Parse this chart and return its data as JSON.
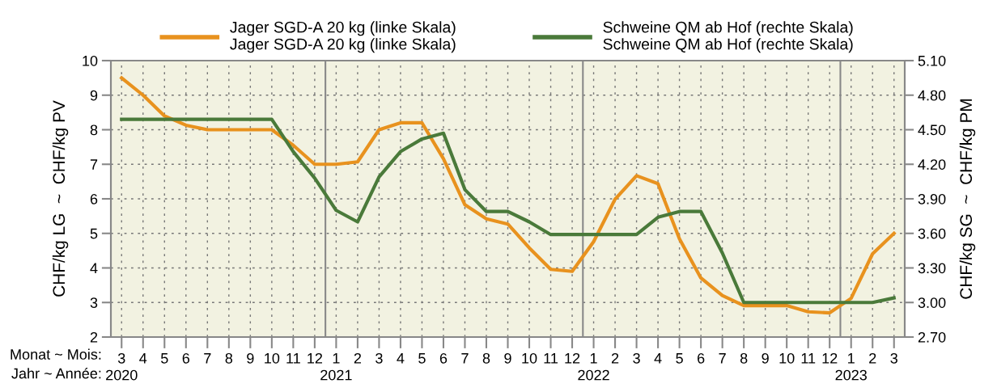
{
  "chart_data": {
    "type": "line",
    "categories": [
      "3\n2020",
      "4",
      "5",
      "6",
      "7",
      "8",
      "9",
      "10",
      "11",
      "12",
      "1\n2021",
      "2",
      "3",
      "4",
      "5",
      "6",
      "7",
      "8",
      "9",
      "10",
      "11",
      "12",
      "1\n2022",
      "2",
      "3",
      "4",
      "5",
      "6",
      "7",
      "8",
      "9",
      "10",
      "11",
      "12",
      "1\n2023",
      "2",
      "3"
    ],
    "series": [
      {
        "name": "Jager SGD-A 20 kg (linke Skala)\nJager SGD-A 20 kg (linke Skala)",
        "color": "#e8921e",
        "values": [
          9.5,
          9.0,
          8.4,
          8.13,
          8.0,
          8.0,
          8.0,
          8.0,
          7.55,
          7.0,
          7.0,
          7.07,
          8.0,
          8.2,
          8.2,
          7.16,
          5.83,
          5.42,
          5.27,
          4.58,
          3.96,
          3.9,
          4.76,
          5.99,
          6.67,
          6.44,
          4.84,
          3.71,
          3.2,
          2.91,
          2.91,
          2.91,
          2.73,
          2.7,
          3.12,
          4.41,
          5.0
        ]
      },
      {
        "name": "Schweine QM ab Hof (rechte Skala)\nSchweine QM ab Hof (rechte Skala)",
        "color": "#4a7a3a",
        "axis": "y2",
        "values": [
          4.59,
          4.59,
          4.59,
          4.59,
          4.59,
          4.59,
          4.59,
          4.59,
          4.31,
          4.08,
          3.8,
          3.7,
          4.09,
          4.31,
          4.42,
          4.47,
          3.98,
          3.79,
          3.79,
          3.7,
          3.59,
          3.59,
          3.59,
          3.59,
          3.59,
          3.74,
          3.79,
          3.79,
          3.43,
          3.0,
          3.0,
          3.0,
          3.0,
          3.0,
          3.0,
          3.0,
          3.04
        ]
      }
    ],
    "ylim": [
      2,
      10
    ],
    "yticks": [
      2,
      3,
      4,
      5,
      6,
      7,
      8,
      9,
      10
    ],
    "y2lim": [
      2.7,
      5.1
    ],
    "y2ticks": [
      {
        "value": 2.7,
        "label": "2.70"
      },
      {
        "value": 3.0,
        "label": "3.00"
      },
      {
        "value": 3.3,
        "label": "3.30"
      },
      {
        "value": 3.6,
        "label": "3.60"
      },
      {
        "value": 3.9,
        "label": "3.90"
      },
      {
        "value": 4.2,
        "label": "4.20"
      },
      {
        "value": 4.5,
        "label": "4.50"
      },
      {
        "value": 4.8,
        "label": "4.80"
      },
      {
        "value": 5.1,
        "label": "5.10"
      }
    ],
    "ylabel": "CHF/kg LG  ~  CHF/kg PV",
    "y2label": "CHF/kg SG  ~  CHF/kg PM",
    "annotations": [
      "Monat ~ Mois:",
      "Jahr ~ Année:"
    ],
    "grid": true,
    "legend": "top",
    "marker": "none",
    "line_style": "solid"
  }
}
